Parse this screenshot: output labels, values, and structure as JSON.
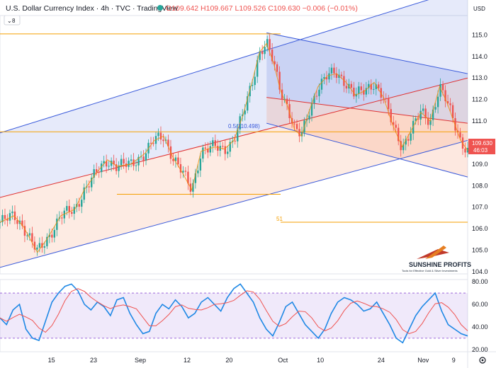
{
  "header": {
    "title": "U.S. Dollar Currency Index · 4h · TVC · TradingView",
    "ohlc_text": "O109.642 H109.667 L109.526 C109.630 −0.006 (−0.01%)",
    "currency": "USD",
    "main_pane_badge": "8",
    "rsi_pane_badge": "2"
  },
  "price_tag": {
    "price": "109.630",
    "countdown": "46:03"
  },
  "fib_label": "0.5(110.498)",
  "level_label": "51",
  "watermark": {
    "brand": "SUNSHINE PROFITS",
    "tagline": "Tools for Effective Gold & Silver Investments"
  },
  "colors": {
    "up": "#26a69a",
    "down": "#ef5350",
    "price_tag": "#ef5350",
    "channel_blue": "#3b5bdb",
    "channel_red": "#e03131",
    "hline": "#f59f00",
    "rsi_line": "#1e88e5",
    "rsi_ma": "#ef5350"
  },
  "chart_data": [
    {
      "type": "line",
      "title": "U.S. Dollar Currency Index · 4h · TVC",
      "x_ticks": [
        "15",
        "23",
        "Sep",
        "12",
        "20",
        "Oct",
        "10",
        "24",
        "Nov",
        "9"
      ],
      "y_ticks": [
        104.0,
        105.0,
        106.0,
        107.0,
        108.0,
        109.0,
        110.0,
        111.0,
        112.0,
        113.0,
        114.0,
        115.0
      ],
      "ylim": [
        103.9,
        115.9
      ],
      "close_path": [
        {
          "x": 0.0,
          "y": 106.3
        },
        {
          "x": 0.03,
          "y": 106.6
        },
        {
          "x": 0.05,
          "y": 106.1
        },
        {
          "x": 0.08,
          "y": 104.9
        },
        {
          "x": 0.1,
          "y": 105.5
        },
        {
          "x": 0.13,
          "y": 106.6
        },
        {
          "x": 0.16,
          "y": 106.9
        },
        {
          "x": 0.18,
          "y": 107.8
        },
        {
          "x": 0.21,
          "y": 108.7
        },
        {
          "x": 0.23,
          "y": 109.2
        },
        {
          "x": 0.25,
          "y": 108.9
        },
        {
          "x": 0.28,
          "y": 109.0
        },
        {
          "x": 0.31,
          "y": 109.5
        },
        {
          "x": 0.33,
          "y": 110.1
        },
        {
          "x": 0.35,
          "y": 110.3
        },
        {
          "x": 0.37,
          "y": 109.3
        },
        {
          "x": 0.39,
          "y": 108.6
        },
        {
          "x": 0.41,
          "y": 107.8
        },
        {
          "x": 0.43,
          "y": 109.6
        },
        {
          "x": 0.46,
          "y": 109.8
        },
        {
          "x": 0.48,
          "y": 109.7
        },
        {
          "x": 0.5,
          "y": 110.1
        },
        {
          "x": 0.52,
          "y": 111.3
        },
        {
          "x": 0.54,
          "y": 112.9
        },
        {
          "x": 0.555,
          "y": 114.2
        },
        {
          "x": 0.57,
          "y": 114.6
        },
        {
          "x": 0.585,
          "y": 113.7
        },
        {
          "x": 0.6,
          "y": 112.4
        },
        {
          "x": 0.615,
          "y": 111.7
        },
        {
          "x": 0.63,
          "y": 110.6
        },
        {
          "x": 0.645,
          "y": 110.3
        },
        {
          "x": 0.66,
          "y": 111.4
        },
        {
          "x": 0.68,
          "y": 112.6
        },
        {
          "x": 0.7,
          "y": 113.1
        },
        {
          "x": 0.72,
          "y": 113.2
        },
        {
          "x": 0.74,
          "y": 112.8
        },
        {
          "x": 0.76,
          "y": 112.2
        },
        {
          "x": 0.78,
          "y": 112.4
        },
        {
          "x": 0.8,
          "y": 112.8
        },
        {
          "x": 0.82,
          "y": 112.1
        },
        {
          "x": 0.84,
          "y": 110.8
        },
        {
          "x": 0.86,
          "y": 109.8
        },
        {
          "x": 0.88,
          "y": 110.6
        },
        {
          "x": 0.9,
          "y": 111.4
        },
        {
          "x": 0.92,
          "y": 111.0
        },
        {
          "x": 0.94,
          "y": 112.6
        },
        {
          "x": 0.955,
          "y": 111.9
        },
        {
          "x": 0.97,
          "y": 111.0
        },
        {
          "x": 0.985,
          "y": 110.1
        },
        {
          "x": 1.0,
          "y": 109.63
        }
      ],
      "channels": [
        {
          "name": "blue-upper",
          "from": {
            "x": 0.0,
            "y": 110.45
          },
          "to": {
            "x": 1.0,
            "y": 117.2
          }
        },
        {
          "name": "red-mid",
          "from": {
            "x": 0.0,
            "y": 107.45
          },
          "to": {
            "x": 1.0,
            "y": 113.0
          }
        },
        {
          "name": "red-lower",
          "from": {
            "x": 0.0,
            "y": 104.2
          },
          "to": {
            "x": 1.0,
            "y": 110.1
          }
        },
        {
          "name": "desc-upper",
          "from": {
            "x": 0.57,
            "y": 115.1
          },
          "to": {
            "x": 1.0,
            "y": 113.2
          }
        },
        {
          "name": "desc-mid",
          "from": {
            "x": 0.57,
            "y": 112.1
          },
          "to": {
            "x": 1.0,
            "y": 110.9
          }
        },
        {
          "name": "desc-lower",
          "from": {
            "x": 0.57,
            "y": 110.9
          },
          "to": {
            "x": 1.0,
            "y": 108.4
          }
        }
      ],
      "hlines": [
        {
          "y": 115.05,
          "x_from": 0.0,
          "x_to": 0.6
        },
        {
          "y": 110.5,
          "x_from": 0.0,
          "x_to": 1.0
        },
        {
          "y": 107.6,
          "x_from": 0.25,
          "x_to": 0.6
        },
        {
          "y": 106.3,
          "x_from": 0.6,
          "x_to": 1.0
        }
      ]
    },
    {
      "type": "line",
      "title": "RSI",
      "y_ticks": [
        20.0,
        40.0,
        60.0,
        80.0
      ],
      "ylim": [
        18,
        82
      ],
      "bands": [
        70,
        30
      ],
      "series": [
        {
          "values": [
            48,
            42,
            55,
            60,
            38,
            30,
            28,
            45,
            62,
            70,
            76,
            78,
            72,
            60,
            55,
            62,
            58,
            50,
            64,
            66,
            52,
            42,
            34,
            36,
            52,
            60,
            56,
            64,
            58,
            48,
            52,
            62,
            66,
            60,
            54,
            66,
            74,
            78,
            70,
            62,
            48,
            38,
            32,
            44,
            58,
            62,
            52,
            42,
            36,
            30,
            38,
            52,
            62,
            66,
            64,
            60,
            54,
            56,
            62,
            52,
            42,
            30,
            26,
            38,
            50,
            58,
            64,
            70,
            54,
            42,
            38,
            34,
            32
          ]
        }
      ]
    }
  ]
}
